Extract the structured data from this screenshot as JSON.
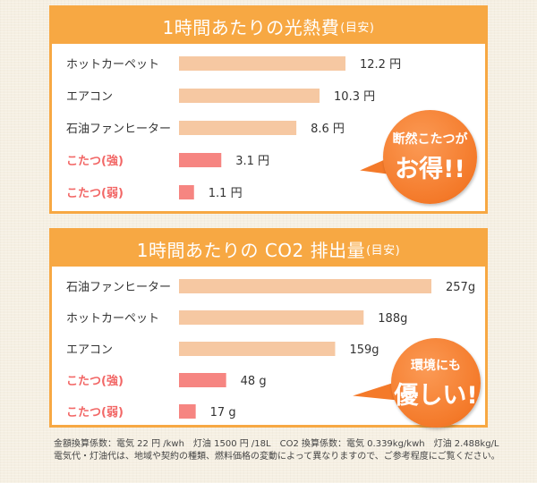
{
  "chart_data": [
    {
      "type": "bar",
      "title": "1時間あたりの光熱費",
      "title_suffix": "(目安)",
      "categories": [
        "ホットカーペット",
        "エアコン",
        "石油ファンヒーター",
        "こたつ(強)",
        "こたつ(弱)"
      ],
      "values": [
        12.2,
        10.3,
        8.6,
        3.1,
        1.1
      ],
      "value_labels": [
        "12.2 円",
        "10.3 円",
        "8.6 円",
        "3.1 円",
        "1.1 円"
      ],
      "highlight": [
        false,
        false,
        false,
        true,
        true
      ],
      "xlim": [
        0,
        12.2
      ],
      "grid": false,
      "legend": "none"
    },
    {
      "type": "bar",
      "title": "1時間あたりの CO2 排出量",
      "title_suffix": "(目安)",
      "categories": [
        "石油ファンヒーター",
        "ホットカーペット",
        "エアコン",
        "こたつ(強)",
        "こたつ(弱)"
      ],
      "values": [
        257,
        188,
        159,
        48,
        17
      ],
      "value_labels": [
        "257g",
        "188g",
        "159g",
        "48 g",
        "17 g"
      ],
      "highlight": [
        false,
        false,
        false,
        true,
        true
      ],
      "xlim": [
        0,
        257
      ],
      "grid": false,
      "legend": "none"
    }
  ],
  "badges": {
    "cost": {
      "line1": "断然こたつが",
      "line2": "お得!!"
    },
    "co2": {
      "line1": "環境にも",
      "line2": "優しい!"
    }
  },
  "footnote": {
    "line1": "金額換算係数：電気 22 円 /kwh　灯油 1500 円 /18L　CO2 換算係数：電気 0.339kg/kwh　灯油 2.488kg/L",
    "line2": "電気代・灯油代は、地域や契約の種類、燃料価格の変動によって異なりますので、ご参考程度にご覧ください。"
  },
  "colors": {
    "accent": "#f7a843",
    "bar": "#f6c8a2",
    "bar_highlight": "#f68581",
    "label_highlight": "#f26766",
    "badge": "#f47a2a"
  }
}
